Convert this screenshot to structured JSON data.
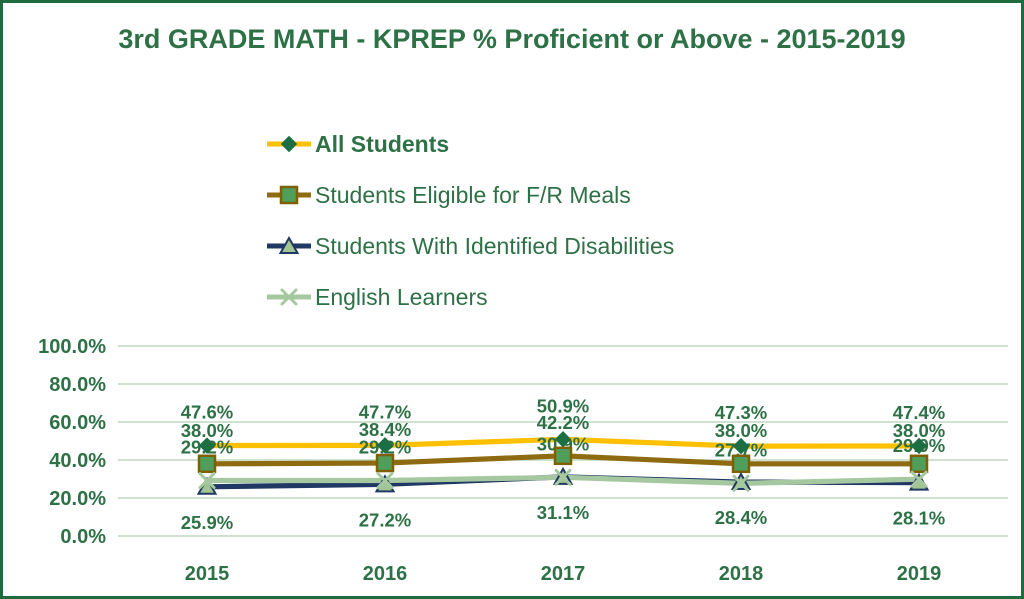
{
  "title": "3rd GRADE MATH - KPREP % Proficient or Above - 2015-2019",
  "colors": {
    "text_green": "#2E7146",
    "gridline": "#BFD9C1",
    "frame_border": "#1E6B40",
    "all_students_line": "#FFC000",
    "all_students_marker": "#1C6F43",
    "fr_meals_line": "#8E6A10",
    "fr_meals_marker_fill": "#4F9E5C",
    "fr_meals_marker_stroke": "#7F6000",
    "disabilities_line": "#1F3864",
    "disabilities_marker_fill": "#A3C493",
    "english_learners_line": "#A6C8A0"
  },
  "chart_data": {
    "type": "line",
    "title": "3rd GRADE MATH - KPREP % Proficient or Above - 2015-2019",
    "categories": [
      "2015",
      "2016",
      "2017",
      "2018",
      "2019"
    ],
    "series": [
      {
        "name": "All Students",
        "values": [
          47.6,
          47.7,
          50.9,
          47.3,
          47.4
        ],
        "labels": [
          "47.6%",
          "47.7%",
          "50.9%",
          "47.3%",
          "47.4%"
        ],
        "color": "#FFC000",
        "marker": "diamond",
        "marker_fill": "#1C6F43",
        "marker_stroke": "#1C6F43",
        "label_position": "above"
      },
      {
        "name": "Students Eligible for F/R Meals",
        "values": [
          38.0,
          38.4,
          42.2,
          38.0,
          38.0
        ],
        "labels": [
          "38.0%",
          "38.4%",
          "42.2%",
          "38.0%",
          "38.0%"
        ],
        "color": "#8E6A10",
        "marker": "square",
        "marker_fill": "#4F9E5C",
        "marker_stroke": "#7F6000",
        "label_position": "above"
      },
      {
        "name": "Students With Identified Disabilities",
        "values": [
          25.9,
          27.2,
          31.1,
          28.4,
          28.1
        ],
        "labels": [
          "25.9%",
          "27.2%",
          "31.1%",
          "28.4%",
          "28.1%"
        ],
        "color": "#1F3864",
        "marker": "triangle",
        "marker_fill": "#A3C493",
        "marker_stroke": "#1F3864",
        "label_position": "below"
      },
      {
        "name": "English Learners",
        "values": [
          29.2,
          29.2,
          30.9,
          27.7,
          29.9
        ],
        "labels": [
          "29.2%",
          "29.2%",
          "30.9%",
          "27.7%",
          "29.9%"
        ],
        "color": "#A6C8A0",
        "marker": "x",
        "marker_fill": "#A6C8A0",
        "marker_stroke": "#A6C8A0",
        "label_position": "above"
      }
    ],
    "y_axis": {
      "ticks": [
        {
          "label": "100.0%",
          "value": 100
        },
        {
          "label": "80.0%",
          "value": 80
        },
        {
          "label": "60.0%",
          "value": 60
        },
        {
          "label": "40.0%",
          "value": 40
        },
        {
          "label": "20.0%",
          "value": 20
        },
        {
          "label": "0.0%",
          "value": 0
        }
      ],
      "min": 0,
      "max": 100
    },
    "grid": true,
    "legend_position": "top-left",
    "xlabel": "",
    "ylabel": ""
  }
}
